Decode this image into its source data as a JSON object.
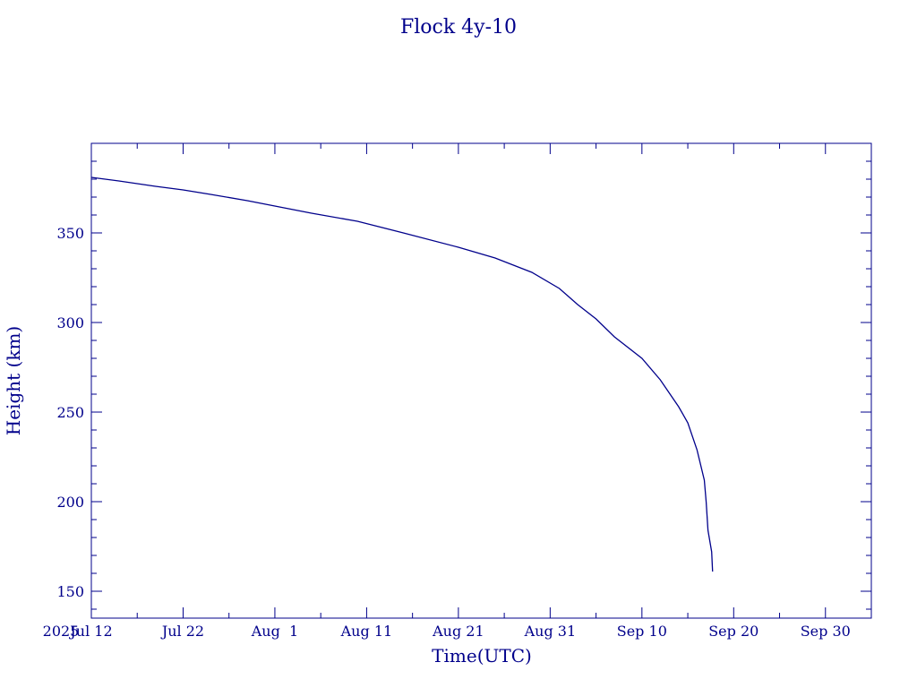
{
  "chart_data": {
    "type": "line",
    "title": "Flock 4y-10",
    "xlabel": "Time(UTC)",
    "ylabel": "Height (km)",
    "year_label": "2025",
    "x_ticks": [
      "Jul 12",
      "Jul 22",
      "Aug  1",
      "Aug 11",
      "Aug 21",
      "Aug 31",
      "Sep 10",
      "Sep 20",
      "Sep 30"
    ],
    "y_ticks": [
      150,
      200,
      250,
      300,
      350
    ],
    "xlim": [
      "2025-07-12",
      "2025-10-05"
    ],
    "ylim": [
      135,
      400
    ],
    "grid": false,
    "series": [
      {
        "color": "#00008b",
        "points": [
          [
            "2025-07-12",
            381
          ],
          [
            "2025-07-15",
            379
          ],
          [
            "2025-07-19",
            376
          ],
          [
            "2025-07-22",
            374
          ],
          [
            "2025-07-25",
            371.5
          ],
          [
            "2025-07-29",
            368
          ],
          [
            "2025-08-01",
            365
          ],
          [
            "2025-08-05",
            361
          ],
          [
            "2025-08-10",
            356.5
          ],
          [
            "2025-08-15",
            350
          ],
          [
            "2025-08-21",
            342
          ],
          [
            "2025-08-25",
            336
          ],
          [
            "2025-08-29",
            328
          ],
          [
            "2025-09-01",
            319
          ],
          [
            "2025-09-03",
            310
          ],
          [
            "2025-09-05",
            302
          ],
          [
            "2025-09-07",
            292
          ],
          [
            "2025-09-10",
            280
          ],
          [
            "2025-09-12",
            268
          ],
          [
            "2025-09-14",
            253
          ],
          [
            "2025-09-15",
            244
          ],
          [
            "2025-09-16",
            229
          ],
          [
            "2025-09-16.8",
            212
          ],
          [
            "2025-09-17",
            200
          ],
          [
            "2025-09-17.2",
            184
          ],
          [
            "2025-09-17.6",
            172
          ],
          [
            "2025-09-17.7",
            161
          ]
        ]
      }
    ]
  }
}
